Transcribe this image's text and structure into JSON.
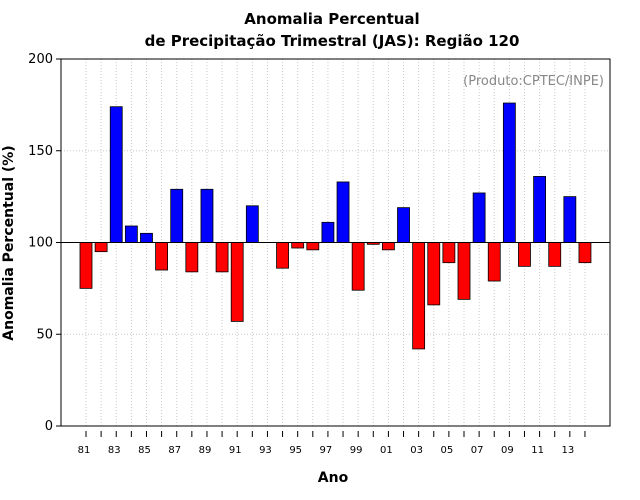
{
  "chart_data": {
    "type": "bar",
    "title": [
      "Anomalia Percentual",
      "de Precipitação Trimestral (JAS): Região 120"
    ],
    "xlabel": "Ano",
    "ylabel": "Anomalia Percentual (%)",
    "credit": "(Produto:CPTEC/INPE)",
    "ylim": [
      0,
      200
    ],
    "yticks": [
      0,
      50,
      100,
      150,
      200
    ],
    "baseline": 100,
    "grid": true,
    "years": [
      1981,
      1982,
      1983,
      1984,
      1985,
      1986,
      1987,
      1988,
      1989,
      1990,
      1991,
      1992,
      1993,
      1994,
      1995,
      1996,
      1997,
      1998,
      1999,
      2000,
      2001,
      2002,
      2003,
      2004,
      2005,
      2006,
      2007,
      2008,
      2009,
      2010,
      2011,
      2012,
      2013,
      2014
    ],
    "xtick_labels": [
      "81",
      "83",
      "85",
      "87",
      "89",
      "91",
      "93",
      "95",
      "97",
      "99",
      "01",
      "03",
      "05",
      "07",
      "09",
      "11",
      "13"
    ],
    "values": [
      75,
      95,
      174,
      109,
      105,
      85,
      129,
      84,
      129,
      84,
      57,
      120,
      null,
      86,
      97,
      96,
      111,
      133,
      74,
      99,
      96,
      119,
      42,
      66,
      89,
      69,
      127,
      79,
      176,
      87,
      136,
      87,
      125,
      89
    ],
    "colors": {
      "above": "#0000ff",
      "below": "#ff0000"
    }
  }
}
